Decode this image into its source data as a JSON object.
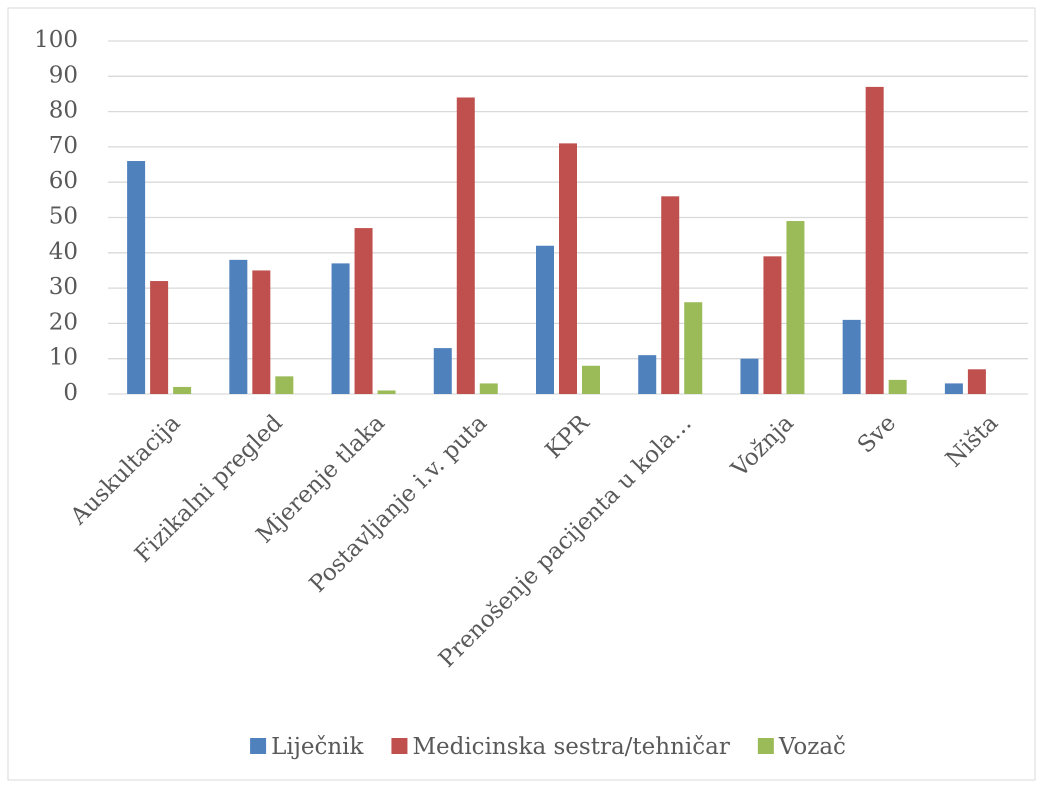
{
  "chart_data": {
    "type": "bar",
    "categories": [
      "Auskultacija",
      "Fizikalni pregled",
      "Mjerenje tlaka",
      "Postavljanje i.v. puta",
      "KPR",
      "Prenošenje pacijenta u kola…",
      "Vožnja",
      "Sve",
      "Ništa"
    ],
    "series": [
      {
        "name": "Liječnik",
        "color": "#4f81bd",
        "values": [
          66,
          38,
          37,
          13,
          42,
          11,
          10,
          21,
          3
        ]
      },
      {
        "name": "Medicinska sestra/tehničar",
        "color": "#c0504d",
        "values": [
          32,
          35,
          47,
          84,
          71,
          56,
          39,
          87,
          7
        ]
      },
      {
        "name": "Vozač",
        "color": "#9bbb59",
        "values": [
          2,
          5,
          1,
          3,
          8,
          26,
          49,
          4,
          0
        ]
      }
    ],
    "ylim": [
      0,
      100
    ],
    "yticks": [
      0,
      10,
      20,
      30,
      40,
      50,
      60,
      70,
      80,
      90,
      100
    ],
    "grid": true,
    "legend": "bottom"
  }
}
